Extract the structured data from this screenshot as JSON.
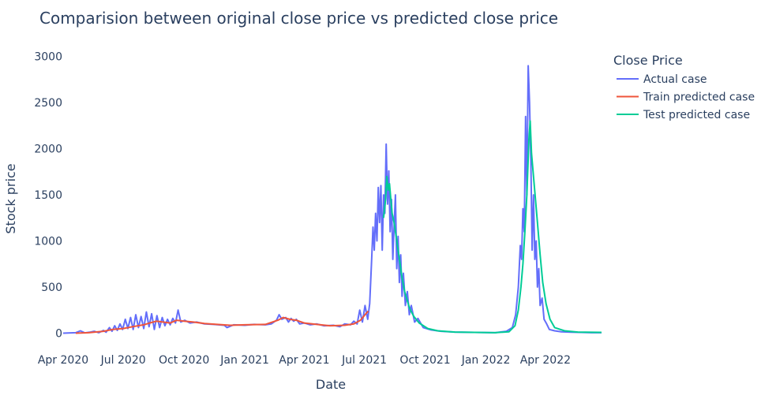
{
  "chart_data": {
    "type": "line",
    "title": "Comparision between original close price vs predicted close price",
    "xlabel": "Date",
    "ylabel": "Stock price",
    "legend_title": "Close Price",
    "legend_position": "top-right",
    "grid": false,
    "xlim": [
      "2020-04-01",
      "2022-06-25"
    ],
    "ylim": [
      -150,
      3100
    ],
    "x_ticks": [
      {
        "date": "2020-04-01",
        "label": "Apr 2020"
      },
      {
        "date": "2020-07-01",
        "label": "Jul 2020"
      },
      {
        "date": "2020-10-01",
        "label": "Oct 2020"
      },
      {
        "date": "2021-01-01",
        "label": "Jan 2021"
      },
      {
        "date": "2021-04-01",
        "label": "Apr 2021"
      },
      {
        "date": "2021-07-01",
        "label": "Jul 2021"
      },
      {
        "date": "2021-10-01",
        "label": "Oct 2021"
      },
      {
        "date": "2022-01-01",
        "label": "Jan 2022"
      },
      {
        "date": "2022-04-01",
        "label": "Apr 2022"
      }
    ],
    "y_ticks": [
      0,
      500,
      1000,
      1500,
      2000,
      2500,
      3000
    ],
    "series": [
      {
        "name": "Actual case",
        "color": "#636efa",
        "points": [
          [
            "2020-04-01",
            0
          ],
          [
            "2020-04-20",
            5
          ],
          [
            "2020-04-27",
            25
          ],
          [
            "2020-05-04",
            3
          ],
          [
            "2020-05-11",
            10
          ],
          [
            "2020-05-18",
            20
          ],
          [
            "2020-05-25",
            5
          ],
          [
            "2020-06-01",
            30
          ],
          [
            "2020-06-05",
            10
          ],
          [
            "2020-06-10",
            60
          ],
          [
            "2020-06-14",
            20
          ],
          [
            "2020-06-18",
            80
          ],
          [
            "2020-06-22",
            30
          ],
          [
            "2020-06-26",
            100
          ],
          [
            "2020-06-30",
            40
          ],
          [
            "2020-07-04",
            150
          ],
          [
            "2020-07-08",
            50
          ],
          [
            "2020-07-12",
            170
          ],
          [
            "2020-07-16",
            40
          ],
          [
            "2020-07-20",
            200
          ],
          [
            "2020-07-24",
            60
          ],
          [
            "2020-07-28",
            180
          ],
          [
            "2020-08-01",
            50
          ],
          [
            "2020-08-05",
            230
          ],
          [
            "2020-08-09",
            70
          ],
          [
            "2020-08-13",
            210
          ],
          [
            "2020-08-17",
            40
          ],
          [
            "2020-08-21",
            190
          ],
          [
            "2020-08-25",
            60
          ],
          [
            "2020-08-29",
            170
          ],
          [
            "2020-09-02",
            80
          ],
          [
            "2020-09-06",
            150
          ],
          [
            "2020-09-10",
            90
          ],
          [
            "2020-09-14",
            160
          ],
          [
            "2020-09-18",
            110
          ],
          [
            "2020-09-22",
            250
          ],
          [
            "2020-09-26",
            120
          ],
          [
            "2020-10-02",
            140
          ],
          [
            "2020-10-10",
            110
          ],
          [
            "2020-10-20",
            120
          ],
          [
            "2020-11-01",
            100
          ],
          [
            "2020-11-15",
            95
          ],
          [
            "2020-12-01",
            85
          ],
          [
            "2020-12-05",
            60
          ],
          [
            "2020-12-15",
            90
          ],
          [
            "2021-01-01",
            85
          ],
          [
            "2021-01-15",
            95
          ],
          [
            "2021-02-01",
            90
          ],
          [
            "2021-02-10",
            100
          ],
          [
            "2021-02-18",
            140
          ],
          [
            "2021-02-22",
            200
          ],
          [
            "2021-02-26",
            150
          ],
          [
            "2021-03-04",
            170
          ],
          [
            "2021-03-08",
            120
          ],
          [
            "2021-03-12",
            160
          ],
          [
            "2021-03-16",
            130
          ],
          [
            "2021-03-20",
            150
          ],
          [
            "2021-03-25",
            100
          ],
          [
            "2021-04-01",
            110
          ],
          [
            "2021-04-10",
            90
          ],
          [
            "2021-04-20",
            100
          ],
          [
            "2021-05-01",
            80
          ],
          [
            "2021-05-15",
            85
          ],
          [
            "2021-05-25",
            70
          ],
          [
            "2021-06-01",
            100
          ],
          [
            "2021-06-10",
            90
          ],
          [
            "2021-06-15",
            130
          ],
          [
            "2021-06-20",
            100
          ],
          [
            "2021-06-24",
            250
          ],
          [
            "2021-06-28",
            120
          ],
          [
            "2021-07-02",
            300
          ],
          [
            "2021-07-06",
            150
          ],
          [
            "2021-07-09",
            320
          ],
          [
            "2021-07-12",
            800
          ],
          [
            "2021-07-14",
            1150
          ],
          [
            "2021-07-16",
            900
          ],
          [
            "2021-07-18",
            1300
          ],
          [
            "2021-07-20",
            1000
          ],
          [
            "2021-07-22",
            1580
          ],
          [
            "2021-07-24",
            1200
          ],
          [
            "2021-07-26",
            1600
          ],
          [
            "2021-07-28",
            900
          ],
          [
            "2021-07-30",
            1500
          ],
          [
            "2021-08-01",
            1300
          ],
          [
            "2021-08-03",
            2050
          ],
          [
            "2021-08-05",
            1400
          ],
          [
            "2021-08-07",
            1760
          ],
          [
            "2021-08-09",
            1100
          ],
          [
            "2021-08-11",
            1450
          ],
          [
            "2021-08-13",
            800
          ],
          [
            "2021-08-15",
            1150
          ],
          [
            "2021-08-17",
            1500
          ],
          [
            "2021-08-19",
            700
          ],
          [
            "2021-08-21",
            1050
          ],
          [
            "2021-08-23",
            550
          ],
          [
            "2021-08-25",
            850
          ],
          [
            "2021-08-27",
            400
          ],
          [
            "2021-08-29",
            650
          ],
          [
            "2021-09-01",
            300
          ],
          [
            "2021-09-04",
            450
          ],
          [
            "2021-09-07",
            200
          ],
          [
            "2021-09-10",
            300
          ],
          [
            "2021-09-15",
            120
          ],
          [
            "2021-09-20",
            160
          ],
          [
            "2021-09-28",
            60
          ],
          [
            "2021-10-10",
            35
          ],
          [
            "2021-10-25",
            20
          ],
          [
            "2021-11-15",
            12
          ],
          [
            "2021-12-15",
            8
          ],
          [
            "2022-01-15",
            5
          ],
          [
            "2022-02-01",
            20
          ],
          [
            "2022-02-10",
            60
          ],
          [
            "2022-02-15",
            200
          ],
          [
            "2022-02-19",
            500
          ],
          [
            "2022-02-22",
            950
          ],
          [
            "2022-02-24",
            800
          ],
          [
            "2022-02-26",
            1350
          ],
          [
            "2022-02-28",
            1100
          ],
          [
            "2022-03-02",
            2350
          ],
          [
            "2022-03-04",
            1500
          ],
          [
            "2022-03-06",
            2900
          ],
          [
            "2022-03-08",
            2500
          ],
          [
            "2022-03-10",
            1850
          ],
          [
            "2022-03-12",
            900
          ],
          [
            "2022-03-14",
            1500
          ],
          [
            "2022-03-16",
            800
          ],
          [
            "2022-03-18",
            1000
          ],
          [
            "2022-03-20",
            500
          ],
          [
            "2022-03-22",
            700
          ],
          [
            "2022-03-24",
            300
          ],
          [
            "2022-03-27",
            380
          ],
          [
            "2022-03-30",
            150
          ],
          [
            "2022-04-03",
            100
          ],
          [
            "2022-04-07",
            40
          ],
          [
            "2022-04-15",
            25
          ],
          [
            "2022-04-25",
            15
          ],
          [
            "2022-05-10",
            10
          ],
          [
            "2022-05-25",
            8
          ],
          [
            "2022-06-10",
            5
          ],
          [
            "2022-06-25",
            5
          ]
        ]
      },
      {
        "name": "Train predicted case",
        "color": "#ef553b",
        "points": [
          [
            "2020-04-20",
            0
          ],
          [
            "2020-05-10",
            5
          ],
          [
            "2020-06-01",
            20
          ],
          [
            "2020-06-15",
            40
          ],
          [
            "2020-07-01",
            50
          ],
          [
            "2020-07-15",
            70
          ],
          [
            "2020-08-01",
            90
          ],
          [
            "2020-08-10",
            110
          ],
          [
            "2020-08-20",
            130
          ],
          [
            "2020-08-30",
            120
          ],
          [
            "2020-09-10",
            110
          ],
          [
            "2020-09-20",
            140
          ],
          [
            "2020-10-01",
            130
          ],
          [
            "2020-10-15",
            120
          ],
          [
            "2020-11-01",
            105
          ],
          [
            "2020-11-20",
            95
          ],
          [
            "2020-12-10",
            85
          ],
          [
            "2021-01-01",
            90
          ],
          [
            "2021-02-01",
            95
          ],
          [
            "2021-02-20",
            140
          ],
          [
            "2021-02-28",
            170
          ],
          [
            "2021-03-10",
            150
          ],
          [
            "2021-03-20",
            140
          ],
          [
            "2021-04-01",
            110
          ],
          [
            "2021-04-20",
            95
          ],
          [
            "2021-05-10",
            80
          ],
          [
            "2021-06-01",
            85
          ],
          [
            "2021-06-15",
            100
          ],
          [
            "2021-06-25",
            140
          ],
          [
            "2021-07-02",
            200
          ],
          [
            "2021-07-07",
            240
          ]
        ]
      },
      {
        "name": "Test predicted case",
        "color": "#00cc96",
        "points": [
          [
            "2021-07-30",
            1250
          ],
          [
            "2021-08-02",
            1450
          ],
          [
            "2021-08-04",
            1700
          ],
          [
            "2021-08-06",
            1550
          ],
          [
            "2021-08-08",
            1620
          ],
          [
            "2021-08-10",
            1450
          ],
          [
            "2021-08-12",
            1300
          ],
          [
            "2021-08-15",
            1200
          ],
          [
            "2021-08-18",
            1050
          ],
          [
            "2021-08-21",
            900
          ],
          [
            "2021-08-24",
            750
          ],
          [
            "2021-08-27",
            600
          ],
          [
            "2021-08-31",
            450
          ],
          [
            "2021-09-04",
            350
          ],
          [
            "2021-09-08",
            260
          ],
          [
            "2021-09-14",
            180
          ],
          [
            "2021-09-22",
            110
          ],
          [
            "2021-10-05",
            50
          ],
          [
            "2021-10-20",
            25
          ],
          [
            "2021-11-15",
            12
          ],
          [
            "2021-12-15",
            8
          ],
          [
            "2022-01-15",
            5
          ],
          [
            "2022-02-05",
            15
          ],
          [
            "2022-02-14",
            80
          ],
          [
            "2022-02-19",
            250
          ],
          [
            "2022-02-23",
            500
          ],
          [
            "2022-02-26",
            750
          ],
          [
            "2022-03-01",
            1100
          ],
          [
            "2022-03-04",
            1500
          ],
          [
            "2022-03-07",
            2100
          ],
          [
            "2022-03-09",
            2300
          ],
          [
            "2022-03-11",
            1950
          ],
          [
            "2022-03-14",
            1700
          ],
          [
            "2022-03-17",
            1450
          ],
          [
            "2022-03-20",
            1200
          ],
          [
            "2022-03-24",
            850
          ],
          [
            "2022-03-28",
            550
          ],
          [
            "2022-04-02",
            320
          ],
          [
            "2022-04-08",
            150
          ],
          [
            "2022-04-15",
            60
          ],
          [
            "2022-04-30",
            25
          ],
          [
            "2022-05-20",
            12
          ],
          [
            "2022-06-25",
            8
          ]
        ]
      }
    ]
  }
}
